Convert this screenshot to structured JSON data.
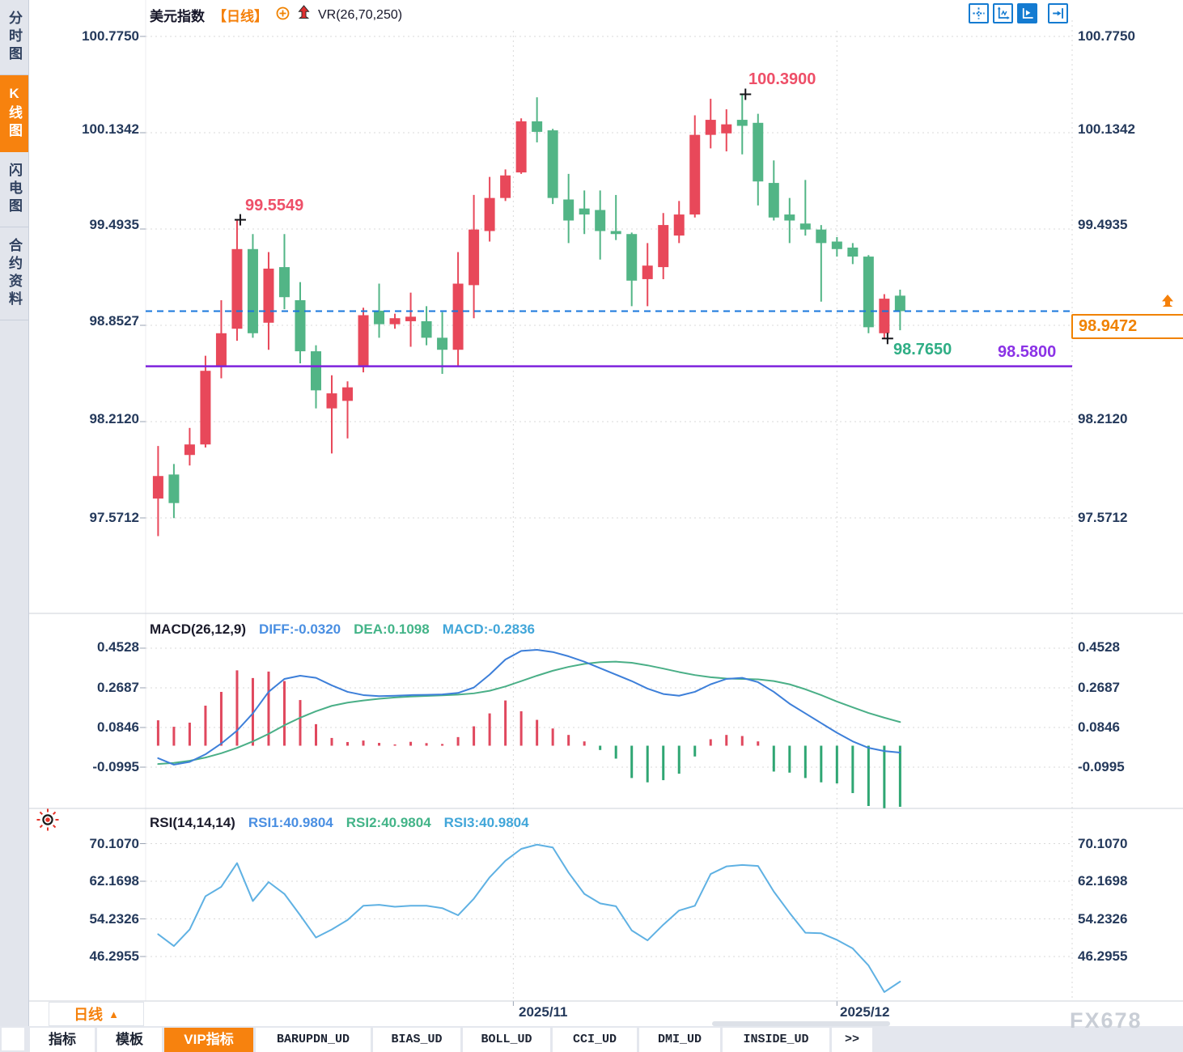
{
  "sidebar": {
    "items": [
      {
        "label": "分时图",
        "active": false
      },
      {
        "label": "K线图",
        "active": true
      },
      {
        "label": "闪电图",
        "active": false
      },
      {
        "label": "合约资料",
        "active": false
      }
    ]
  },
  "header": {
    "symbol": "美元指数",
    "period_tag": "【日线】",
    "indicator": "VR(26,70,250)"
  },
  "toolbar": {
    "buttons": [
      "pan-crosshair",
      "axis-zoom",
      "axis-play",
      "collapse-right"
    ]
  },
  "price_axis": {
    "labels": [
      "100.7750",
      "100.1342",
      "99.4935",
      "98.8527",
      "98.2120",
      "97.5712"
    ]
  },
  "annotations": {
    "high1": "99.5549",
    "high2": "100.3900",
    "low": "98.7650",
    "support": "98.5800"
  },
  "last_price_box": {
    "value": "98.9472"
  },
  "macd_panel": {
    "title": "MACD(26,12,9)",
    "diff_label": "DIFF:-0.0320",
    "dea_label": "DEA:0.1098",
    "macd_label": "MACD:-0.2836",
    "axis_labels": [
      "0.4528",
      "0.2687",
      "0.0846",
      "-0.0995"
    ]
  },
  "rsi_panel": {
    "title": "RSI(14,14,14)",
    "rsi1_label": "RSI1:40.9804",
    "rsi2_label": "RSI2:40.9804",
    "rsi3_label": "RSI3:40.9804",
    "axis_labels": [
      "70.1070",
      "62.1698",
      "54.2326",
      "46.2955"
    ]
  },
  "x_axis": {
    "labels": [
      "2025/11",
      "2025/12"
    ]
  },
  "period_button": {
    "label": "日线",
    "arrow": "▲"
  },
  "bottom_tabs": {
    "items": [
      {
        "label": "指标",
        "active": false,
        "mono": false
      },
      {
        "label": "模板",
        "active": false,
        "mono": false
      },
      {
        "label": "VIP指标",
        "active": true,
        "mono": false
      },
      {
        "label": "BARUPDN_UD",
        "active": false,
        "mono": true
      },
      {
        "label": "BIAS_UD",
        "active": false,
        "mono": true
      },
      {
        "label": "BOLL_UD",
        "active": false,
        "mono": true
      },
      {
        "label": "CCI_UD",
        "active": false,
        "mono": true
      },
      {
        "label": "DMI_UD",
        "active": false,
        "mono": true
      },
      {
        "label": "INSIDE_UD",
        "active": false,
        "mono": true
      },
      {
        "label": ">>",
        "active": false,
        "mono": true
      }
    ]
  },
  "watermark": "FX678",
  "colors": {
    "up": "#e8485a",
    "down": "#52b586",
    "accent_orange": "#f5800a",
    "support_purple": "#7e22dd",
    "last_price_blue": "#1877dc",
    "diff_blue": "#3d7fd9",
    "dea_green": "#4aaf87",
    "rsi_blue": "#5fb1e3",
    "hist_up": "#e0485e",
    "hist_down": "#2fa673"
  },
  "chart_data": {
    "type": "candlestick+macd+rsi",
    "symbol": "美元指数 (US Dollar Index)",
    "interval": "日线 (daily)",
    "price_axis_ticks": [
      100.775,
      100.1342,
      99.4935,
      98.8527,
      98.212,
      97.5712
    ],
    "x_gridline_labels": [
      "2025/11",
      "2025/12"
    ],
    "gridline_indices": [
      22.5,
      43
    ],
    "last_price": 98.9472,
    "support_line": 98.58,
    "markers": [
      {
        "index": 5,
        "price": 99.5549,
        "position": "high"
      },
      {
        "index": 37,
        "price": 100.39,
        "position": "high"
      },
      {
        "index": 46,
        "price": 98.765,
        "position": "low"
      }
    ],
    "candles": {
      "open": [
        97.7,
        97.86,
        97.99,
        98.06,
        98.58,
        98.83,
        99.36,
        98.87,
        99.24,
        99.02,
        98.68,
        98.3,
        98.35,
        98.58,
        98.95,
        98.86,
        98.88,
        98.88,
        98.77,
        98.69,
        99.12,
        99.48,
        99.7,
        99.87,
        100.21,
        100.15,
        99.69,
        99.63,
        99.62,
        99.48,
        99.46,
        99.16,
        99.24,
        99.45,
        99.59,
        100.12,
        100.13,
        100.22,
        100.2,
        99.8,
        99.59,
        99.53,
        99.49,
        99.41,
        99.37,
        99.31,
        98.8,
        99.05
      ],
      "high": [
        98.05,
        97.93,
        98.17,
        98.65,
        99.02,
        99.5549,
        99.46,
        99.34,
        99.46,
        99.14,
        98.72,
        98.52,
        98.48,
        98.97,
        99.13,
        98.93,
        99.07,
        98.98,
        98.94,
        99.34,
        99.72,
        99.84,
        99.89,
        100.23,
        100.37,
        100.16,
        99.86,
        99.75,
        99.75,
        99.72,
        99.47,
        99.4,
        99.6,
        99.68,
        100.25,
        100.36,
        100.29,
        100.39,
        100.26,
        99.95,
        99.7,
        99.82,
        99.52,
        99.44,
        99.4,
        99.32,
        99.06,
        99.09
      ],
      "low": [
        97.45,
        97.57,
        97.92,
        98.04,
        98.5,
        98.75,
        98.77,
        98.69,
        98.96,
        98.6,
        98.3,
        98.0,
        98.1,
        98.54,
        98.77,
        98.83,
        98.71,
        98.72,
        98.53,
        98.58,
        98.9,
        99.41,
        99.68,
        99.86,
        100.07,
        99.66,
        99.4,
        99.46,
        99.29,
        99.42,
        98.98,
        98.98,
        99.16,
        99.4,
        99.57,
        100.03,
        100.01,
        99.99,
        99.65,
        99.55,
        99.4,
        99.45,
        99.01,
        99.31,
        99.26,
        98.8,
        98.765,
        98.82
      ],
      "close": [
        97.85,
        97.67,
        98.06,
        98.55,
        98.8,
        99.36,
        98.8,
        99.23,
        99.04,
        98.68,
        98.42,
        98.4,
        98.44,
        98.92,
        98.86,
        98.9,
        98.91,
        98.77,
        98.69,
        99.13,
        99.49,
        99.7,
        99.85,
        100.21,
        100.14,
        99.7,
        99.55,
        99.59,
        99.48,
        99.46,
        99.15,
        99.25,
        99.52,
        99.59,
        100.12,
        100.22,
        100.19,
        100.18,
        99.81,
        99.57,
        99.55,
        99.49,
        99.4,
        99.36,
        99.31,
        98.84,
        99.03,
        98.9472
      ]
    },
    "macd": {
      "params": "(26,12,9)",
      "diff": -0.032,
      "dea": 0.1098,
      "macd": -0.2836,
      "axis_ticks": [
        0.4528,
        0.2687,
        0.0846,
        -0.0995
      ],
      "diff_series": [
        -0.058,
        -0.088,
        -0.075,
        -0.04,
        0.01,
        0.07,
        0.15,
        0.25,
        0.31,
        0.325,
        0.315,
        0.28,
        0.25,
        0.235,
        0.23,
        0.232,
        0.235,
        0.236,
        0.238,
        0.245,
        0.27,
        0.33,
        0.4,
        0.44,
        0.445,
        0.435,
        0.415,
        0.39,
        0.36,
        0.33,
        0.3,
        0.265,
        0.24,
        0.232,
        0.25,
        0.285,
        0.31,
        0.315,
        0.295,
        0.25,
        0.195,
        0.15,
        0.105,
        0.06,
        0.02,
        -0.01,
        -0.025,
        -0.032
      ],
      "dea_series": [
        -0.085,
        -0.08,
        -0.07,
        -0.055,
        -0.035,
        -0.01,
        0.02,
        0.055,
        0.095,
        0.13,
        0.16,
        0.185,
        0.2,
        0.21,
        0.218,
        0.224,
        0.228,
        0.231,
        0.234,
        0.237,
        0.243,
        0.255,
        0.275,
        0.3,
        0.325,
        0.348,
        0.366,
        0.38,
        0.388,
        0.39,
        0.385,
        0.373,
        0.358,
        0.342,
        0.328,
        0.318,
        0.312,
        0.31,
        0.308,
        0.3,
        0.285,
        0.262,
        0.235,
        0.205,
        0.178,
        0.152,
        0.13,
        0.1098
      ],
      "hist_series": [
        0.118,
        0.088,
        0.107,
        0.186,
        0.25,
        0.35,
        0.314,
        0.344,
        0.3,
        0.212,
        0.1,
        0.036,
        0.017,
        0.024,
        0.013,
        0.006,
        0.018,
        0.012,
        0.008,
        0.04,
        0.09,
        0.15,
        0.21,
        0.16,
        0.12,
        0.08,
        0.05,
        0.02,
        -0.02,
        -0.06,
        -0.15,
        -0.17,
        -0.16,
        -0.13,
        -0.05,
        0.03,
        0.05,
        0.045,
        0.02,
        -0.12,
        -0.125,
        -0.15,
        -0.17,
        -0.175,
        -0.22,
        -0.28,
        -0.29,
        -0.2836
      ]
    },
    "rsi": {
      "params": "(14,14,14)",
      "rsi1": 40.9804,
      "rsi2": 40.9804,
      "rsi3": 40.9804,
      "axis_ticks": [
        70.107,
        62.1698,
        54.2326,
        46.2955
      ],
      "series": [
        51.0,
        48.5,
        52.0,
        59.0,
        61.0,
        66.0,
        58.0,
        62.0,
        59.5,
        55.0,
        50.3,
        52.0,
        54.0,
        57.0,
        57.2,
        56.8,
        57.0,
        57.0,
        56.5,
        55.0,
        58.5,
        63.0,
        66.5,
        69.0,
        69.9,
        69.3,
        64.0,
        59.5,
        57.5,
        56.9,
        51.8,
        49.7,
        53.0,
        56.0,
        57.0,
        63.7,
        65.3,
        65.6,
        65.4,
        60.0,
        55.5,
        51.3,
        51.2,
        49.8,
        48.0,
        44.4,
        38.8,
        41.0
      ]
    }
  }
}
